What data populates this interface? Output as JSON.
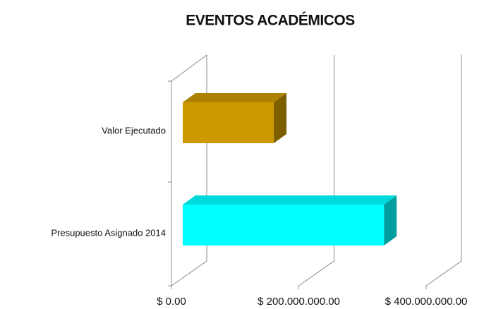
{
  "chart_data": {
    "type": "bar3d_horizontal",
    "title": "EVENTOS ACADÉMICOS",
    "categories": [
      "Valor Ejecutado",
      "Presupuesto Asignado 2014"
    ],
    "values": [
      143000000,
      316000000
    ],
    "colors": [
      "#cc9900",
      "#00ffff"
    ],
    "xlim": [
      0,
      400000000
    ],
    "xticks": [
      {
        "value": 0,
        "label": "$ 0.00"
      },
      {
        "value": 200000000,
        "label": "$ 200.000.000.00"
      },
      {
        "value": 400000000,
        "label": "$ 400.000.000.00"
      }
    ],
    "grid": true
  }
}
